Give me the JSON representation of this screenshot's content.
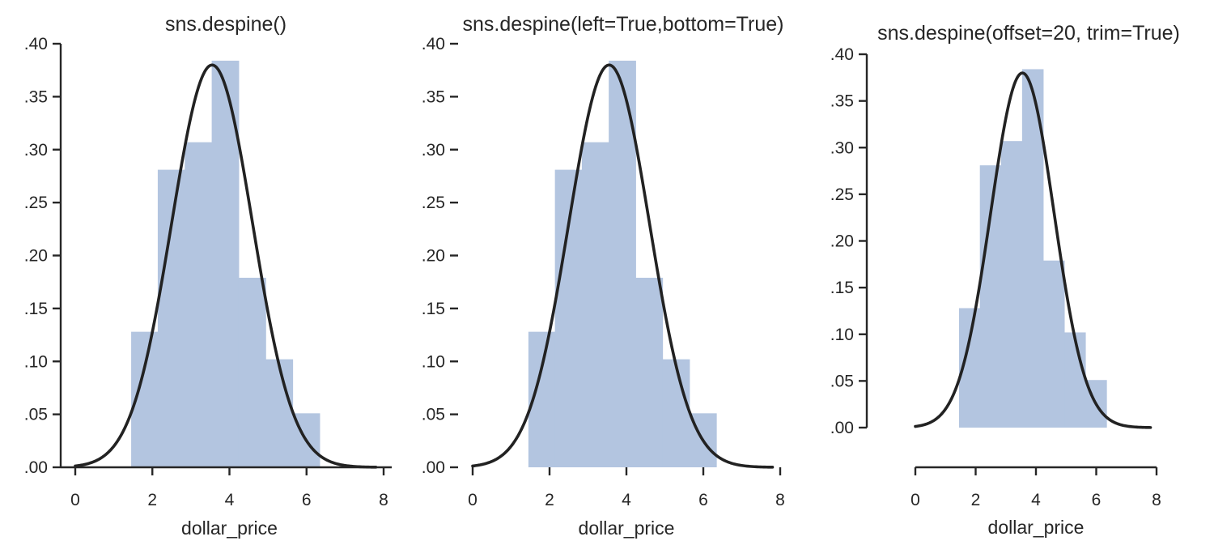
{
  "chart_data": [
    {
      "type": "bar",
      "title": "sns.despine()",
      "xlabel": "dollar_price",
      "ylabel": "",
      "xlim": [
        -0.4,
        8
      ],
      "ylim": [
        0,
        0.4
      ],
      "xticks": [
        0,
        2,
        4,
        6,
        8
      ],
      "xtick_labels": [
        "0",
        "2",
        "4",
        "6",
        "8"
      ],
      "yticks": [
        0,
        0.05,
        0.1,
        0.15,
        0.2,
        0.25,
        0.3,
        0.35,
        0.4
      ],
      "ytick_labels": [
        ".00",
        ".05",
        ".10",
        ".15",
        ".20",
        ".25",
        ".30",
        ".35",
        ".40"
      ],
      "bins": [
        {
          "x0": 1.45,
          "x1": 2.14,
          "value": 0.128
        },
        {
          "x0": 2.14,
          "x1": 2.84,
          "value": 0.281
        },
        {
          "x0": 2.84,
          "x1": 3.54,
          "value": 0.307
        },
        {
          "x0": 3.54,
          "x1": 4.24,
          "value": 0.384
        },
        {
          "x0": 4.24,
          "x1": 4.94,
          "value": 0.179
        },
        {
          "x0": 4.94,
          "x1": 5.64,
          "value": 0.102
        },
        {
          "x0": 5.64,
          "x1": 6.34,
          "value": 0.051
        }
      ],
      "fit_curve": {
        "type": "normal",
        "mean": 3.55,
        "std": 1.05,
        "x_range": [
          0,
          7.8
        ]
      },
      "spines": {
        "left": true,
        "bottom": true,
        "top": false,
        "right": false
      },
      "offset": 0,
      "trim": false,
      "grid": false
    },
    {
      "type": "bar",
      "title": "sns.despine(left=True,bottom=True)",
      "xlabel": "dollar_price",
      "ylabel": "",
      "xlim": [
        -0.4,
        8
      ],
      "ylim": [
        0,
        0.4
      ],
      "xticks": [
        0,
        2,
        4,
        6,
        8
      ],
      "xtick_labels": [
        "0",
        "2",
        "4",
        "6",
        "8"
      ],
      "yticks": [
        0,
        0.05,
        0.1,
        0.15,
        0.2,
        0.25,
        0.3,
        0.35,
        0.4
      ],
      "ytick_labels": [
        ".00",
        ".05",
        ".10",
        ".15",
        ".20",
        ".25",
        ".30",
        ".35",
        ".40"
      ],
      "bins": [
        {
          "x0": 1.45,
          "x1": 2.14,
          "value": 0.128
        },
        {
          "x0": 2.14,
          "x1": 2.84,
          "value": 0.281
        },
        {
          "x0": 2.84,
          "x1": 3.54,
          "value": 0.307
        },
        {
          "x0": 3.54,
          "x1": 4.24,
          "value": 0.384
        },
        {
          "x0": 4.24,
          "x1": 4.94,
          "value": 0.179
        },
        {
          "x0": 4.94,
          "x1": 5.64,
          "value": 0.102
        },
        {
          "x0": 5.64,
          "x1": 6.34,
          "value": 0.051
        }
      ],
      "fit_curve": {
        "type": "normal",
        "mean": 3.55,
        "std": 1.05,
        "x_range": [
          0,
          7.8
        ]
      },
      "spines": {
        "left": false,
        "bottom": false,
        "top": false,
        "right": false
      },
      "offset": 0,
      "trim": false,
      "grid": false
    },
    {
      "type": "bar",
      "title": "sns.despine(offset=20, trim=True)",
      "xlabel": "dollar_price",
      "ylabel": "",
      "xlim": [
        -0.4,
        8
      ],
      "ylim": [
        0,
        0.4
      ],
      "xticks": [
        0,
        2,
        4,
        6,
        8
      ],
      "xtick_labels": [
        "0",
        "2",
        "4",
        "6",
        "8"
      ],
      "yticks": [
        0,
        0.05,
        0.1,
        0.15,
        0.2,
        0.25,
        0.3,
        0.35,
        0.4
      ],
      "ytick_labels": [
        ".00",
        ".05",
        ".10",
        ".15",
        ".20",
        ".25",
        ".30",
        ".35",
        ".40"
      ],
      "bins": [
        {
          "x0": 1.45,
          "x1": 2.14,
          "value": 0.128
        },
        {
          "x0": 2.14,
          "x1": 2.84,
          "value": 0.281
        },
        {
          "x0": 2.84,
          "x1": 3.54,
          "value": 0.307
        },
        {
          "x0": 3.54,
          "x1": 4.24,
          "value": 0.384
        },
        {
          "x0": 4.24,
          "x1": 4.94,
          "value": 0.179
        },
        {
          "x0": 4.94,
          "x1": 5.64,
          "value": 0.102
        },
        {
          "x0": 5.64,
          "x1": 6.34,
          "value": 0.051
        }
      ],
      "fit_curve": {
        "type": "normal",
        "mean": 3.55,
        "std": 1.05,
        "x_range": [
          0,
          7.8
        ]
      },
      "spines": {
        "left": true,
        "bottom": true,
        "top": false,
        "right": false
      },
      "offset": 20,
      "trim": true,
      "grid": false
    }
  ],
  "colors": {
    "bar_fill": "#b3c5e0",
    "curve": "#222222",
    "axis": "#262626",
    "background": "#ffffff"
  }
}
